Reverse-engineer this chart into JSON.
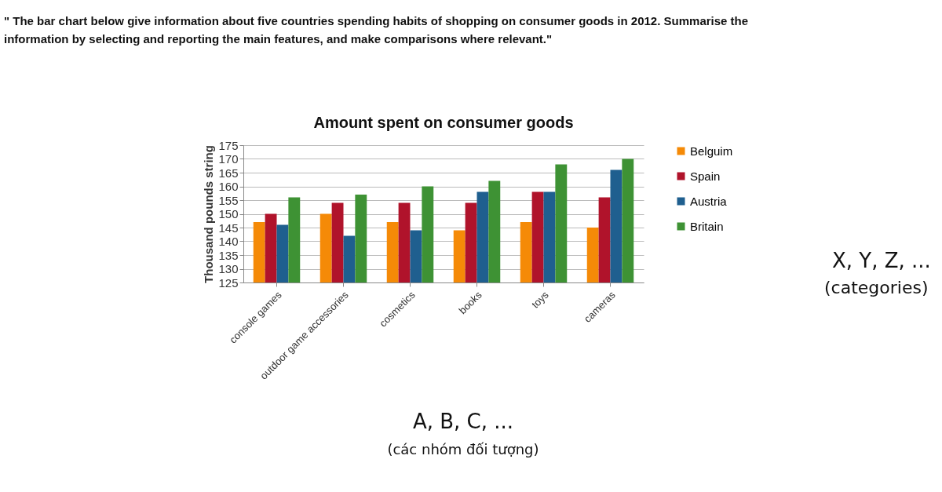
{
  "chart_data": {
    "type": "bar",
    "title": "Amount spent on consumer goods",
    "ylabel": "Thousand pounds string",
    "categories": [
      "console games",
      "outdoor game accessories",
      "cosmetics",
      "books",
      "toys",
      "cameras"
    ],
    "series": [
      {
        "name": "Belguim",
        "color": "#f58a07",
        "values": [
          147,
          150,
          147,
          144,
          147,
          145
        ]
      },
      {
        "name": "Spain",
        "color": "#b0132b",
        "values": [
          150,
          154,
          154,
          154,
          158,
          156
        ]
      },
      {
        "name": "Austria",
        "color": "#1f5f8f",
        "values": [
          146,
          142,
          144,
          158,
          158,
          166
        ]
      },
      {
        "name": "Britain",
        "color": "#3e9234",
        "values": [
          156,
          157,
          160,
          162,
          168,
          170
        ]
      }
    ],
    "ylim": [
      125,
      175
    ],
    "yticks": [
      125,
      130,
      135,
      140,
      145,
      150,
      155,
      160,
      165,
      170,
      175
    ],
    "grid": "y",
    "legend": "right",
    "annotations": [
      "\" The bar chart below give information about five countries spending habits of shopping on consumer goods in 2012. Summarise the information by selecting and reporting the main features, and make comparisons where relevant.\"",
      "X, Y, Z, ...",
      "(categories)",
      "A, B, C, ...",
      "(các nhóm đối tượng)"
    ]
  }
}
